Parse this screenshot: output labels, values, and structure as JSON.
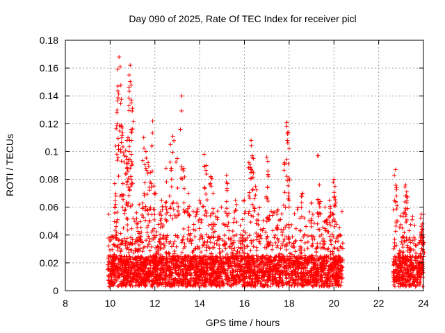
{
  "chart_data": {
    "type": "scatter",
    "title": "Day 090 of 2025, Rate Of TEC Index for receiver picl",
    "xlabel": "GPS time / hours",
    "ylabel": "ROTI / TECUs",
    "xlim": [
      8,
      24
    ],
    "ylim": [
      0,
      0.18
    ],
    "xticks": [
      8,
      10,
      12,
      14,
      16,
      18,
      20,
      22,
      24
    ],
    "yticks": [
      0,
      0.02,
      0.04,
      0.06,
      0.08,
      0.1,
      0.12,
      0.14,
      0.16,
      0.18
    ],
    "xtick_labels": [
      "8",
      "10",
      "12",
      "14",
      "16",
      "18",
      "20",
      "22",
      "24"
    ],
    "ytick_labels": [
      "0",
      "0.02",
      "0.04",
      "0.06",
      "0.08",
      "0.1",
      "0.12",
      "0.14",
      "0.16",
      "0.18"
    ],
    "grid": true,
    "marker": "+",
    "color": "#ff0000",
    "data_segments": [
      {
        "x_start": 9.9,
        "x_end": 20.4
      },
      {
        "x_start": 22.65,
        "x_end": 24.0
      }
    ],
    "series": [
      {
        "name": "ROTI",
        "x": [
          10.4,
          10.45,
          10.35,
          10.9,
          10.85,
          10.95,
          10.3,
          10.5,
          10.8,
          10.85,
          13.2,
          11.9,
          11.0,
          10.95,
          10.6,
          10.55,
          10.7,
          10.75,
          11.5,
          11.6,
          11.7,
          11.8,
          12.5,
          12.7,
          12.8,
          13.0,
          13.3,
          13.5,
          14.2,
          14.3,
          14.5,
          16.3,
          16.35,
          16.4,
          16.2,
          17.0,
          17.05,
          17.9,
          17.95,
          18.0,
          17.8,
          19.3,
          19.35,
          20.0,
          20.05,
          19.6,
          15.2,
          15.25,
          22.75,
          22.8,
          23.2,
          23.25,
          23.9,
          23.95,
          24.0,
          10.2,
          10.25,
          11.3,
          12.0,
          12.2,
          12.3,
          14.0,
          14.6,
          15.6,
          16.0,
          16.5,
          17.5,
          18.6,
          19.0,
          19.8
        ],
        "y": [
          0.168,
          0.161,
          0.147,
          0.162,
          0.155,
          0.137,
          0.128,
          0.118,
          0.11,
          0.1,
          0.14,
          0.122,
          0.131,
          0.098,
          0.099,
          0.117,
          0.101,
          0.088,
          0.11,
          0.1,
          0.092,
          0.085,
          0.088,
          0.105,
          0.111,
          0.095,
          0.088,
          0.07,
          0.098,
          0.09,
          0.082,
          0.108,
          0.097,
          0.095,
          0.092,
          0.096,
          0.086,
          0.121,
          0.114,
          0.102,
          0.092,
          0.097,
          0.076,
          0.08,
          0.075,
          0.06,
          0.083,
          0.077,
          0.087,
          0.074,
          0.076,
          0.071,
          0.055,
          0.048,
          0.04,
          0.077,
          0.062,
          0.062,
          0.07,
          0.055,
          0.065,
          0.065,
          0.07,
          0.065,
          0.065,
          0.075,
          0.058,
          0.07,
          0.063,
          0.065
        ]
      }
    ]
  }
}
